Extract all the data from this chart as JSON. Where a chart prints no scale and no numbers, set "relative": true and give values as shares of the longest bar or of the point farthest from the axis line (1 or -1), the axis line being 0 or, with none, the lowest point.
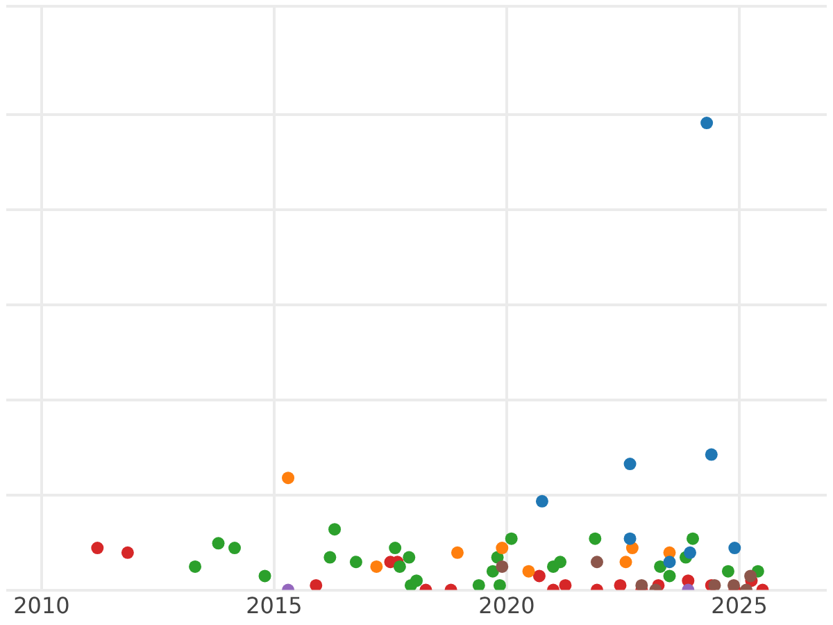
{
  "chart_data": {
    "type": "scatter",
    "relative": true,
    "xlim": [
      2009.24,
      2026.88
    ],
    "xticks": [
      2010,
      2015,
      2020,
      2025
    ],
    "grid": true,
    "marker": "circle",
    "series": [
      {
        "color": "#d62728",
        "x": [
          2011.2,
          2011.85,
          2015.9,
          2017.5,
          2017.65,
          2018.26,
          2018.8,
          2020.7,
          2021.0,
          2021.26,
          2021.94,
          2022.44,
          2022.9,
          2023.26,
          2023.9,
          2024.4,
          2024.9,
          2025.26,
          2025.5
        ],
        "values": [
          0.09,
          0.08,
          0.01,
          0.06,
          0.06,
          0,
          0,
          0.03,
          0,
          0.01,
          0,
          0.01,
          0,
          0.01,
          0.02,
          0.01,
          0,
          0.02,
          0
        ]
      },
      {
        "color": "#2ca02c",
        "x": [
          2013.3,
          2013.8,
          2014.15,
          2014.8,
          2016.2,
          2016.3,
          2016.76,
          2017.6,
          2017.7,
          2017.9,
          2017.94,
          2018.06,
          2019.4,
          2019.7,
          2019.8,
          2019.85,
          2020.1,
          2021.0,
          2021.15,
          2021.9,
          2023.3,
          2023.5,
          2023.85,
          2024.0,
          2024.76,
          2025.4
        ],
        "values": [
          0.05,
          0.1,
          0.09,
          0.03,
          0.07,
          0.13,
          0.06,
          0.09,
          0.05,
          0.07,
          0.01,
          0.02,
          0.01,
          0.04,
          0.07,
          0.01,
          0.11,
          0.05,
          0.06,
          0.11,
          0.05,
          0.03,
          0.07,
          0.11,
          0.04,
          0.04
        ]
      },
      {
        "color": "#ff7f0e",
        "x": [
          2015.3,
          2017.2,
          2018.94,
          2019.9,
          2020.47,
          2022.56,
          2022.7,
          2023.5
        ],
        "values": [
          0.24,
          0.05,
          0.08,
          0.09,
          0.04,
          0.06,
          0.09,
          0.08
        ]
      },
      {
        "color": "#1f77b4",
        "x": [
          2024.3,
          2022.65,
          2024.4,
          2020.76,
          2022.65,
          2023.5,
          2023.94,
          2024.9
        ],
        "values": [
          1,
          0.27,
          0.29,
          0.19,
          0.11,
          0.06,
          0.08,
          0.09
        ]
      },
      {
        "color": "#8c564b",
        "x": [
          2019.9,
          2021.94,
          2022.9,
          2023.2,
          2024.47,
          2024.88,
          2025.24,
          2025.15
        ],
        "values": [
          0.05,
          0.06,
          0.01,
          0,
          0.01,
          0.01,
          0.03,
          0
        ]
      },
      {
        "color": "#9467bd",
        "x": [
          2015.3,
          2023.9
        ],
        "values": [
          0,
          0
        ]
      }
    ]
  }
}
